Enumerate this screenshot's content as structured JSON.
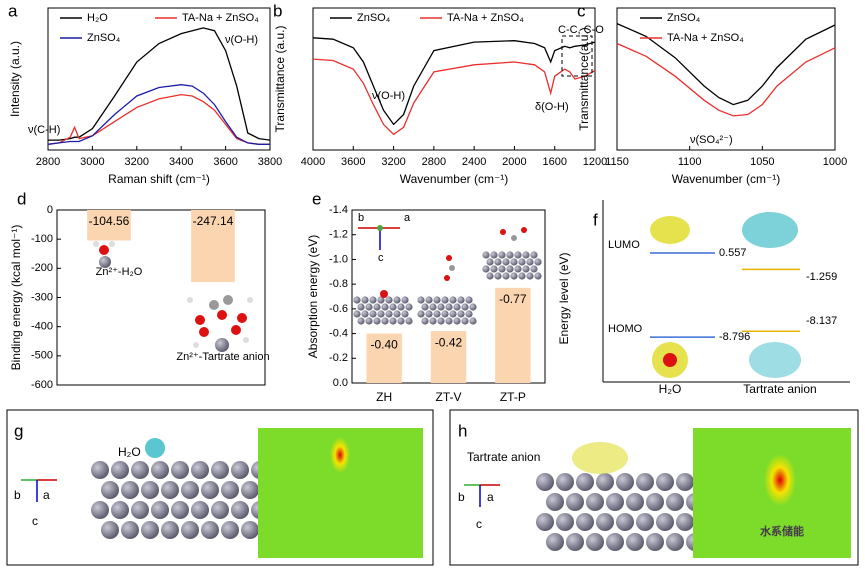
{
  "chart_data": [
    {
      "type": "line",
      "label": "a",
      "xlabel": "Raman shift (cm⁻¹)",
      "ylabel": "Intensity (a.u.)",
      "xlim": [
        2800,
        3800
      ],
      "xticks": [
        2800,
        3000,
        3200,
        3400,
        3600,
        3800
      ],
      "ylim": [
        0,
        100
      ],
      "x": [
        2800,
        2850,
        2900,
        2920,
        2940,
        3000,
        3100,
        3200,
        3300,
        3400,
        3450,
        3500,
        3550,
        3600,
        3650,
        3700,
        3750,
        3800
      ],
      "series": [
        {
          "name": "H₂O",
          "color": "#000000",
          "values": [
            7,
            7,
            8,
            9,
            9,
            15,
            38,
            62,
            75,
            82,
            84,
            86,
            84,
            70,
            45,
            12,
            8,
            7
          ]
        },
        {
          "name": "TA-Na + ZnSO₄",
          "color": "#e8302e",
          "values": [
            4,
            5,
            9,
            16,
            8,
            10,
            20,
            30,
            36,
            39,
            38,
            34,
            28,
            18,
            8,
            5,
            4,
            4
          ]
        },
        {
          "name": "ZnSO₄",
          "color": "#1c1ca8",
          "values": [
            4,
            5,
            6,
            6,
            6,
            10,
            25,
            38,
            44,
            46,
            45,
            40,
            32,
            20,
            9,
            5,
            4,
            4
          ]
        }
      ],
      "annotations": [
        "ν(C-H)",
        "ν(O-H)"
      ]
    },
    {
      "type": "line",
      "label": "b",
      "xlabel": "Wavenumber (cm⁻¹)",
      "ylabel": "Transmittance (a.u.)",
      "xlim": [
        4000,
        1200
      ],
      "xticks": [
        4000,
        3600,
        3200,
        2800,
        2400,
        2000,
        1600,
        1200
      ],
      "ylim": [
        0,
        100
      ],
      "x": [
        4000,
        3800,
        3600,
        3500,
        3400,
        3300,
        3200,
        3100,
        3000,
        2800,
        2400,
        2000,
        1800,
        1700,
        1640,
        1600,
        1500,
        1450,
        1400,
        1300,
        1200
      ],
      "series": [
        {
          "name": "ZnSO₄",
          "color": "#000000",
          "values": [
            79,
            78,
            72,
            62,
            45,
            28,
            18,
            25,
            45,
            70,
            76,
            77,
            75,
            72,
            62,
            70,
            73,
            72,
            73,
            74,
            76
          ]
        },
        {
          "name": "TA-Na + ZnSO₄",
          "color": "#e8302e",
          "values": [
            64,
            63,
            57,
            47,
            32,
            18,
            11,
            16,
            33,
            55,
            60,
            62,
            60,
            55,
            40,
            52,
            57,
            55,
            50,
            52,
            56
          ]
        }
      ],
      "annotations": [
        "ν(O-H)",
        "δ(O-H)",
        "C-C, C-O"
      ]
    },
    {
      "type": "line",
      "label": "c",
      "xlabel": "Wavenumber (cm⁻¹)",
      "ylabel": "Transmittance(a.u.)",
      "xlim": [
        1150,
        1000
      ],
      "xticks": [
        1150,
        1100,
        1050,
        1000
      ],
      "ylim": [
        0,
        100
      ],
      "x": [
        1150,
        1130,
        1110,
        1090,
        1080,
        1070,
        1060,
        1050,
        1040,
        1020,
        1000
      ],
      "series": [
        {
          "name": "ZnSO₄",
          "color": "#000000",
          "values": [
            89,
            80,
            65,
            45,
            37,
            32,
            35,
            45,
            58,
            78,
            88
          ]
        },
        {
          "name": "TA-Na + ZnSO₄",
          "color": "#e8302e",
          "values": [
            75,
            66,
            52,
            35,
            28,
            24,
            25,
            32,
            45,
            62,
            72
          ]
        }
      ],
      "annotations": [
        "ν(SO₄²⁻)"
      ]
    },
    {
      "type": "bar",
      "label": "d",
      "ylabel": "Binding energy (kcal mol⁻¹)",
      "color": "#fbd5b0",
      "ylim": [
        -600,
        0
      ],
      "yticks": [
        0,
        -100,
        -200,
        -300,
        -400,
        -500,
        -600
      ],
      "categories": [
        "Zn²⁺-H₂O",
        "Zn²⁺-Tartrate anion"
      ],
      "values": [
        -104.56,
        -247.14
      ],
      "annotations": []
    },
    {
      "type": "bar",
      "label": "e",
      "ylabel": "Absorption energy (eV)",
      "color": "#fbd5b0",
      "ylim": [
        0,
        -1.4
      ],
      "yticks": [
        {
          "value": 0,
          "label": "0.0"
        },
        -0.2,
        -0.4,
        -0.6,
        -0.8,
        {
          "value": -1,
          "label": "-1.0"
        },
        -1.2,
        -1.4
      ],
      "categories": [
        "ZH",
        "ZT-V",
        "ZT-P"
      ],
      "values": [
        -0.4,
        -0.42,
        -0.77
      ],
      "value_labels": [
        "-0.40",
        "-0.42",
        "-0.77"
      ],
      "annotations": [
        "b",
        "a",
        "c"
      ]
    },
    {
      "type": "level",
      "label": "f",
      "ylabel": "Energy level (eV)",
      "ylim": [
        -12,
        3
      ],
      "categories": [
        "LUMO",
        "HOMO"
      ],
      "series": [
        {
          "name": "H₂O",
          "color": "#3a6fd8",
          "values": [
            0.557,
            -8.796
          ]
        },
        {
          "name": "Tartrate anion",
          "color": "#e8b400",
          "values": [
            -1.259,
            -8.137
          ]
        }
      ],
      "annotations": []
    }
  ],
  "panels": [
    {
      "label": "g",
      "molecule": "H₂O",
      "axes": [
        "b",
        "a",
        "c"
      ]
    },
    {
      "label": "h",
      "molecule": "Tartrate anion",
      "axes": [
        "b",
        "a",
        "c"
      ]
    }
  ],
  "watermark": "水系储能"
}
